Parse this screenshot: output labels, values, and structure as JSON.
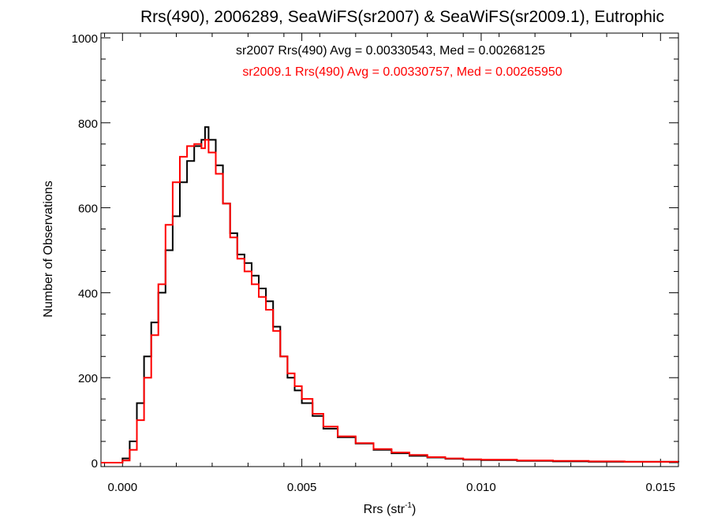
{
  "chart_data": {
    "type": "line",
    "title": "Rrs(490), 2006289, SeaWiFS(sr2007) & SeaWiFS(sr2009.1), Eutrophic",
    "xlabel": "Rrs (str",
    "xlabel_sup": "-1",
    "xlabel_end": ")",
    "ylabel": "Number of Observations",
    "xlim": [
      -0.0006,
      0.0155
    ],
    "ylim": [
      0,
      1000
    ],
    "x_ticks": [
      0.0,
      0.005,
      0.01,
      0.015
    ],
    "x_tick_labels": [
      "0.000",
      "0.005",
      "0.010",
      "0.015"
    ],
    "y_ticks": [
      0,
      200,
      400,
      600,
      800,
      1000
    ],
    "y_tick_labels": [
      "0",
      "200",
      "400",
      "600",
      "800",
      "1000"
    ],
    "grid": false,
    "annotations": [
      {
        "text": "sr2007 Rrs(490) Avg = 0.00330543, Med = 0.00268125",
        "color": "#000000"
      },
      {
        "text": "sr2009.1 Rrs(490) Avg = 0.00330757, Med = 0.00265950",
        "color": "#ff0000"
      }
    ],
    "series": [
      {
        "name": "sr2007",
        "color": "#000000",
        "x": [
          -0.0006,
          -0.0001,
          0.0,
          0.0002,
          0.0004,
          0.0006,
          0.0008,
          0.001,
          0.0012,
          0.0014,
          0.0016,
          0.0018,
          0.002,
          0.0022,
          0.0023,
          0.0024,
          0.0026,
          0.0028,
          0.003,
          0.0032,
          0.0034,
          0.0036,
          0.0038,
          0.004,
          0.0042,
          0.0044,
          0.0046,
          0.0048,
          0.005,
          0.0053,
          0.0056,
          0.006,
          0.0065,
          0.007,
          0.0075,
          0.008,
          0.0085,
          0.009,
          0.0095,
          0.01,
          0.011,
          0.012,
          0.013,
          0.014,
          0.0155
        ],
        "y": [
          0,
          0,
          10,
          50,
          140,
          250,
          330,
          400,
          500,
          580,
          660,
          710,
          745,
          760,
          790,
          760,
          700,
          610,
          540,
          490,
          470,
          440,
          410,
          380,
          320,
          250,
          200,
          170,
          140,
          110,
          80,
          60,
          45,
          30,
          22,
          16,
          12,
          9,
          7,
          6,
          4,
          3,
          2,
          2,
          1
        ]
      },
      {
        "name": "sr2009.1",
        "color": "#ff0000",
        "x": [
          -0.0006,
          -0.0001,
          0.0,
          0.0002,
          0.0004,
          0.0006,
          0.0008,
          0.001,
          0.0012,
          0.0014,
          0.0016,
          0.0018,
          0.002,
          0.0022,
          0.0023,
          0.0024,
          0.0026,
          0.0028,
          0.003,
          0.0032,
          0.0034,
          0.0036,
          0.0038,
          0.004,
          0.0042,
          0.0044,
          0.0046,
          0.0048,
          0.005,
          0.0053,
          0.0056,
          0.006,
          0.0065,
          0.007,
          0.0075,
          0.008,
          0.0085,
          0.009,
          0.0095,
          0.01,
          0.011,
          0.012,
          0.013,
          0.014,
          0.0155
        ],
        "y": [
          0,
          0,
          5,
          30,
          100,
          200,
          300,
          420,
          560,
          660,
          720,
          745,
          750,
          740,
          760,
          730,
          680,
          610,
          530,
          480,
          450,
          420,
          390,
          360,
          310,
          250,
          210,
          180,
          150,
          115,
          85,
          62,
          46,
          32,
          24,
          18,
          13,
          10,
          8,
          7,
          5,
          4,
          3,
          2,
          2
        ]
      }
    ]
  }
}
